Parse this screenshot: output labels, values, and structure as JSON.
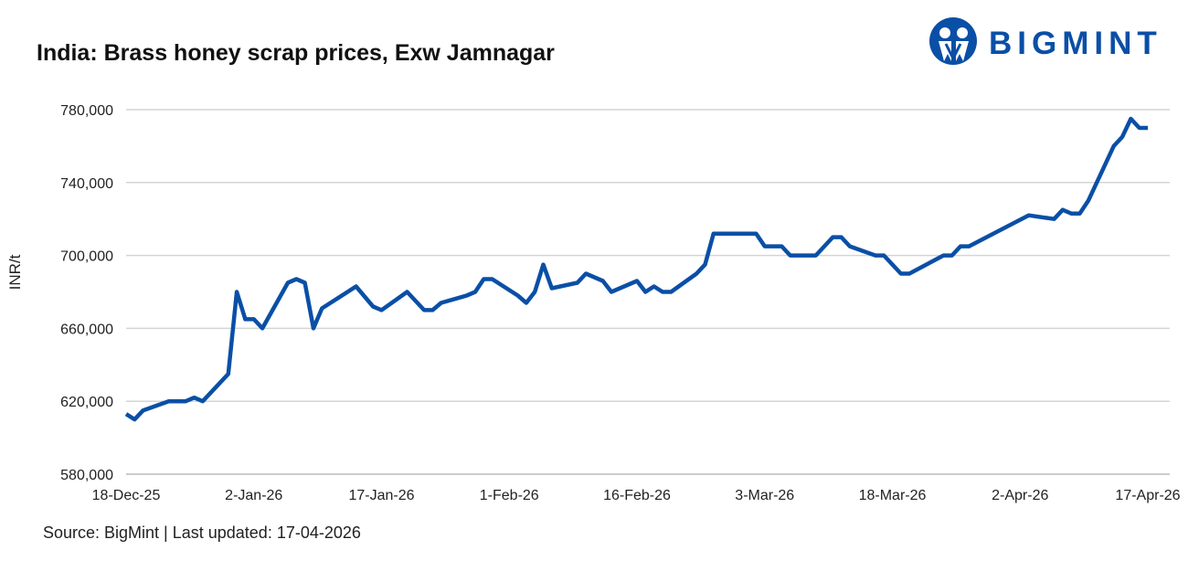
{
  "title": "India: Brass honey scrap prices, Exw Jamnagar",
  "source": "Source: BigMint | Last updated: 17-04-2026",
  "logo": {
    "text": "BIGMINT",
    "color": "#0a4fa6"
  },
  "chart_data": {
    "type": "line",
    "title": "India: Brass honey scrap prices, Exw Jamnagar",
    "xlabel": "",
    "ylabel": "INR/t",
    "ylim": [
      580000,
      780000
    ],
    "xlim": [
      "2025-12-18",
      "2026-04-17"
    ],
    "grid": "horizontal",
    "line_color": "#0a4fa6",
    "y_ticks": [
      580000,
      620000,
      660000,
      700000,
      740000,
      780000
    ],
    "y_tick_labels": [
      "580,000",
      "620,000",
      "660,000",
      "700,000",
      "740,000",
      "780,000"
    ],
    "x_ticks": [
      "2025-12-18",
      "2026-01-02",
      "2026-01-17",
      "2026-02-01",
      "2026-02-16",
      "2026-03-03",
      "2026-03-18",
      "2026-04-02",
      "2026-04-17"
    ],
    "x_tick_labels": [
      "18-Dec-25",
      "2-Jan-26",
      "17-Jan-26",
      "1-Feb-26",
      "16-Feb-26",
      "3-Mar-26",
      "18-Mar-26",
      "2-Apr-26",
      "17-Apr-26"
    ],
    "series": [
      {
        "x": [
          "2025-12-18",
          "2025-12-19",
          "2025-12-20",
          "2025-12-23",
          "2025-12-25",
          "2025-12-26",
          "2025-12-27",
          "2025-12-30",
          "2025-12-31",
          "2026-01-01",
          "2026-01-02",
          "2026-01-03",
          "2026-01-06",
          "2026-01-07",
          "2026-01-08",
          "2026-01-09",
          "2026-01-10",
          "2026-01-14",
          "2026-01-16",
          "2026-01-17",
          "2026-01-20",
          "2026-01-22",
          "2026-01-23",
          "2026-01-24",
          "2026-01-27",
          "2026-01-28",
          "2026-01-29",
          "2026-01-30",
          "2026-02-02",
          "2026-02-03",
          "2026-02-04",
          "2026-02-05",
          "2026-02-06",
          "2026-02-09",
          "2026-02-10",
          "2026-02-12",
          "2026-02-13",
          "2026-02-16",
          "2026-02-17",
          "2026-02-18",
          "2026-02-19",
          "2026-02-20",
          "2026-02-23",
          "2026-02-24",
          "2026-02-25",
          "2026-03-02",
          "2026-03-03",
          "2026-03-05",
          "2026-03-06",
          "2026-03-09",
          "2026-03-11",
          "2026-03-12",
          "2026-03-13",
          "2026-03-16",
          "2026-03-17",
          "2026-03-19",
          "2026-03-20",
          "2026-03-24",
          "2026-03-25",
          "2026-03-26",
          "2026-03-27",
          "2026-04-03",
          "2026-04-06",
          "2026-04-07",
          "2026-04-08",
          "2026-04-09",
          "2026-04-10",
          "2026-04-13",
          "2026-04-14",
          "2026-04-15",
          "2026-04-16",
          "2026-04-17"
        ],
        "y": [
          613000,
          610000,
          615000,
          620000,
          620000,
          622000,
          620000,
          635000,
          680000,
          665000,
          665000,
          660000,
          685000,
          687000,
          685000,
          660000,
          671000,
          683000,
          672000,
          670000,
          680000,
          670000,
          670000,
          674000,
          678000,
          680000,
          687000,
          687000,
          678000,
          674000,
          680000,
          695000,
          682000,
          685000,
          690000,
          686000,
          680000,
          686000,
          680000,
          683000,
          680000,
          680000,
          690000,
          695000,
          712000,
          712000,
          705000,
          705000,
          700000,
          700000,
          710000,
          710000,
          705000,
          700000,
          700000,
          690000,
          690000,
          700000,
          700000,
          705000,
          705000,
          722000,
          720000,
          725000,
          723000,
          723000,
          730000,
          760000,
          765000,
          775000,
          770000,
          770000
        ]
      }
    ]
  }
}
